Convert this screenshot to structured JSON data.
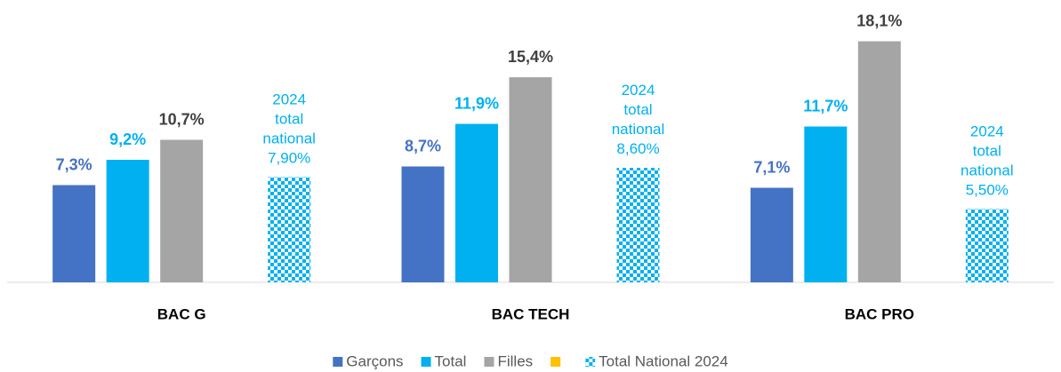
{
  "chart_data": {
    "type": "bar",
    "categories": [
      "BAC G",
      "BAC TECH",
      "BAC PRO"
    ],
    "ylim": [
      0,
      20
    ],
    "series": [
      {
        "name": "Garçons",
        "color": "#4472c4",
        "values": [
          7.3,
          8.7,
          7.1
        ],
        "value_labels": [
          "7,3%",
          "8,7%",
          "7,1%"
        ]
      },
      {
        "name": "Total",
        "color": "#00b0f0",
        "values": [
          9.2,
          11.9,
          11.7
        ],
        "value_labels": [
          "9,2%",
          "11,9%",
          "11,7%"
        ]
      },
      {
        "name": "Filles",
        "color": "#a5a5a5",
        "values": [
          10.7,
          15.4,
          18.1
        ],
        "value_labels": [
          "10,7%",
          "15,4%",
          "18,1%"
        ]
      },
      {
        "name": null,
        "color": "#ffc000",
        "values": [
          null,
          null,
          null
        ]
      },
      {
        "name": "Total National 2024",
        "color": "#00b0f0",
        "pattern": "checker",
        "values": [
          7.9,
          8.6,
          5.5
        ],
        "value_labels": [
          "2024\ntotal\nnational\n7,90%",
          "2024\ntotal\nnational\n8,60%",
          "2024\ntotal\nnational\n5,50%"
        ]
      }
    ]
  }
}
